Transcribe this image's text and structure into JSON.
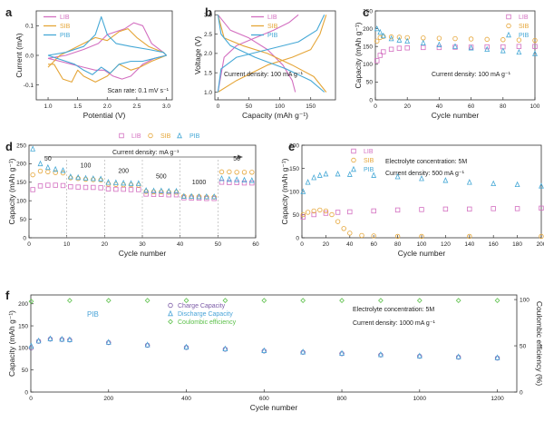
{
  "figure": {
    "type": "multi-panel electrochemistry figure",
    "series_colors": {
      "LIB": "#d36fc0",
      "SIB": "#e5a537",
      "PIB": "#45a8d6",
      "charge": "#7b5aa6",
      "discharge": "#4aa4d8",
      "ce": "#5cc04a"
    }
  },
  "chart_data": [
    {
      "panel": "a",
      "type": "line",
      "xlabel": "Potential (V)",
      "ylabel": "Current (mA)",
      "xlim": [
        0.8,
        3.1
      ],
      "ylim": [
        -0.15,
        0.15
      ],
      "xticks": [
        "1.0",
        "1.5",
        "2.0",
        "2.5",
        "3.0"
      ],
      "yticks": [
        "-0.1",
        "0.0",
        "0.1"
      ],
      "annotation": "Scan rate: 0.1 mV s⁻¹",
      "series": [
        {
          "name": "LIB",
          "color": "#d36fc0",
          "x": [
            1.0,
            1.3,
            1.6,
            1.85,
            2.0,
            2.15,
            2.3,
            2.45,
            2.6,
            2.75,
            2.95,
            3.0,
            2.8,
            2.6,
            2.4,
            2.25,
            2.1,
            1.95,
            1.8,
            1.6,
            1.4,
            1.2,
            1.0
          ],
          "y": [
            -0.01,
            0.0,
            0.02,
            0.04,
            0.07,
            0.08,
            0.09,
            0.11,
            0.1,
            0.04,
            0.01,
            0.0,
            -0.01,
            -0.03,
            -0.07,
            -0.08,
            -0.07,
            -0.05,
            -0.05,
            -0.04,
            -0.03,
            -0.02,
            -0.01
          ]
        },
        {
          "name": "SIB",
          "color": "#e5a537",
          "x": [
            1.0,
            1.2,
            1.4,
            1.6,
            1.8,
            2.0,
            2.2,
            2.35,
            2.5,
            2.7,
            2.95,
            3.0,
            2.75,
            2.55,
            2.4,
            2.2,
            2.0,
            1.8,
            1.6,
            1.5,
            1.4,
            1.25,
            1.1,
            1.0
          ],
          "y": [
            -0.04,
            0.0,
            0.02,
            0.04,
            0.06,
            0.05,
            0.08,
            0.09,
            0.06,
            0.03,
            0.01,
            0.0,
            -0.02,
            -0.04,
            -0.05,
            -0.03,
            -0.07,
            -0.09,
            -0.07,
            -0.05,
            -0.09,
            -0.08,
            -0.03,
            -0.03
          ]
        },
        {
          "name": "PIB",
          "color": "#45a8d6",
          "x": [
            1.0,
            1.3,
            1.6,
            1.8,
            1.9,
            2.0,
            2.15,
            2.4,
            2.7,
            2.95,
            3.0,
            2.8,
            2.6,
            2.4,
            2.2,
            2.05,
            1.9,
            1.75,
            1.6,
            1.45,
            1.3,
            1.15,
            1.0
          ],
          "y": [
            0.0,
            0.01,
            0.03,
            0.07,
            0.13,
            0.07,
            0.04,
            0.03,
            0.02,
            0.01,
            0.0,
            -0.01,
            -0.02,
            -0.02,
            -0.03,
            -0.06,
            -0.04,
            -0.065,
            -0.05,
            -0.03,
            -0.02,
            -0.01,
            0.0
          ]
        }
      ]
    },
    {
      "panel": "b",
      "type": "line",
      "xlabel": "Capacity (mAh g⁻¹)",
      "ylabel": "Voltage (V)",
      "xlim": [
        -5,
        190
      ],
      "ylim": [
        0.8,
        3.1
      ],
      "xticks": [
        "0",
        "50",
        "100",
        "150"
      ],
      "yticks": [
        "1.0",
        "1.5",
        "2.0",
        "2.5",
        "3.0"
      ],
      "annotation": "Current density: 100 mA g⁻¹",
      "series": [
        {
          "name": "LIB",
          "color": "#d36fc0",
          "curves": [
            {
              "x": [
                0,
                10,
                30,
                60,
                90,
                115,
                130
              ],
              "y": [
                1.0,
                1.9,
                2.2,
                2.4,
                2.6,
                2.8,
                3.0
              ]
            },
            {
              "x": [
                0,
                20,
                50,
                80,
                105,
                120,
                125
              ],
              "y": [
                3.0,
                2.6,
                2.4,
                2.1,
                1.7,
                1.3,
                1.0
              ]
            }
          ]
        },
        {
          "name": "SIB",
          "color": "#e5a537",
          "curves": [
            {
              "x": [
                0,
                30,
                80,
                120,
                150,
                165,
                175
              ],
              "y": [
                1.0,
                1.3,
                1.7,
                1.9,
                2.1,
                2.5,
                3.0
              ]
            },
            {
              "x": [
                0,
                10,
                40,
                80,
                120,
                155,
                175
              ],
              "y": [
                3.0,
                2.4,
                2.2,
                2.0,
                1.7,
                1.4,
                1.0
              ]
            }
          ]
        },
        {
          "name": "PIB",
          "color": "#45a8d6",
          "curves": [
            {
              "x": [
                0,
                5,
                30,
                80,
                130,
                160,
                172
              ],
              "y": [
                1.0,
                1.6,
                1.9,
                2.1,
                2.3,
                2.6,
                3.0
              ]
            },
            {
              "x": [
                0,
                5,
                20,
                60,
                110,
                150,
                172
              ],
              "y": [
                3.0,
                2.5,
                2.2,
                1.9,
                1.6,
                1.3,
                1.0
              ]
            }
          ]
        }
      ]
    },
    {
      "panel": "c",
      "type": "scatter",
      "xlabel": "Cycle number",
      "ylabel": "Capacity (mAh g⁻¹)",
      "xlim": [
        0,
        100
      ],
      "ylim": [
        0,
        250
      ],
      "xticks": [
        "0",
        "20",
        "40",
        "60",
        "80",
        "100"
      ],
      "yticks": [
        "0",
        "50",
        "100",
        "150",
        "200",
        "250"
      ],
      "annotation": "Current density: 100 mA g⁻¹",
      "series": [
        {
          "name": "LIB",
          "color": "#d36fc0",
          "x": [
            1,
            3,
            5,
            10,
            15,
            20,
            30,
            40,
            50,
            60,
            70,
            80,
            90,
            100
          ],
          "y": [
            110,
            125,
            135,
            142,
            145,
            146,
            147,
            147,
            148,
            148,
            149,
            149,
            150,
            150
          ]
        },
        {
          "name": "SIB",
          "color": "#e5a537",
          "x": [
            1,
            3,
            5,
            10,
            15,
            20,
            30,
            40,
            50,
            60,
            70,
            80,
            90,
            100
          ],
          "y": [
            165,
            175,
            178,
            177,
            176,
            175,
            174,
            173,
            172,
            171,
            170,
            169,
            168,
            167
          ]
        },
        {
          "name": "PIB",
          "color": "#45a8d6",
          "x": [
            1,
            3,
            5,
            10,
            15,
            20,
            30,
            40,
            50,
            60,
            70,
            80,
            90,
            100
          ],
          "y": [
            200,
            190,
            180,
            172,
            168,
            165,
            160,
            155,
            150,
            146,
            142,
            138,
            134,
            130
          ]
        }
      ]
    },
    {
      "panel": "d",
      "type": "scatter",
      "xlabel": "Cycle number",
      "ylabel": "Capacity (mAh g⁻¹)",
      "xlim": [
        0,
        60
      ],
      "ylim": [
        0,
        250
      ],
      "xticks": [
        "0",
        "10",
        "20",
        "30",
        "40",
        "50",
        "60"
      ],
      "yticks": [
        "0",
        "50",
        "100",
        "150",
        "200",
        "250"
      ],
      "annotation": "Current density: mA g⁻¹",
      "rate_labels": [
        "50",
        "100",
        "200",
        "500",
        "1000",
        "50"
      ],
      "series": [
        {
          "name": "LIB",
          "color": "#d36fc0",
          "x": [
            1,
            3,
            5,
            7,
            9,
            11,
            13,
            15,
            17,
            19,
            21,
            23,
            25,
            27,
            29,
            31,
            33,
            35,
            37,
            39,
            41,
            43,
            45,
            47,
            49,
            51,
            53,
            55,
            57,
            59
          ],
          "y": [
            130,
            140,
            142,
            142,
            141,
            138,
            137,
            136,
            136,
            135,
            132,
            131,
            131,
            130,
            130,
            118,
            117,
            117,
            116,
            116,
            108,
            107,
            107,
            106,
            106,
            150,
            149,
            149,
            148,
            148
          ]
        },
        {
          "name": "SIB",
          "color": "#e5a537",
          "x": [
            1,
            3,
            5,
            7,
            9,
            11,
            13,
            15,
            17,
            19,
            21,
            23,
            25,
            27,
            29,
            31,
            33,
            35,
            37,
            39,
            41,
            43,
            45,
            47,
            49,
            51,
            53,
            55,
            57,
            59
          ],
          "y": [
            170,
            180,
            178,
            176,
            175,
            162,
            160,
            158,
            157,
            156,
            145,
            144,
            143,
            143,
            142,
            125,
            124,
            124,
            123,
            123,
            112,
            111,
            111,
            110,
            110,
            178,
            178,
            177,
            177,
            177
          ]
        },
        {
          "name": "PIB",
          "color": "#45a8d6",
          "x": [
            1,
            3,
            5,
            7,
            9,
            11,
            13,
            15,
            17,
            19,
            21,
            23,
            25,
            27,
            29,
            31,
            33,
            35,
            37,
            39,
            41,
            43,
            45,
            47,
            49,
            51,
            53,
            55,
            57,
            59
          ],
          "y": [
            240,
            200,
            190,
            185,
            182,
            165,
            163,
            161,
            160,
            159,
            150,
            149,
            148,
            147,
            147,
            128,
            127,
            127,
            126,
            126,
            112,
            112,
            111,
            111,
            111,
            160,
            158,
            157,
            156,
            155
          ]
        }
      ]
    },
    {
      "panel": "e",
      "type": "scatter",
      "xlabel": "Cycle number",
      "ylabel": "Capacity (mAh g⁻¹)",
      "xlim": [
        0,
        200
      ],
      "ylim": [
        0,
        200
      ],
      "xticks": [
        "0",
        "20",
        "40",
        "60",
        "80",
        "100",
        "120",
        "140",
        "160",
        "180",
        "200"
      ],
      "yticks": [
        "0",
        "50",
        "100",
        "150",
        "200"
      ],
      "annotations": [
        "Electrolyte concentration: 5M",
        "Current density: 500 mA g⁻¹"
      ],
      "series": [
        {
          "name": "LIB",
          "color": "#d36fc0",
          "x": [
            1,
            10,
            20,
            30,
            40,
            60,
            80,
            100,
            120,
            140,
            160,
            180,
            200
          ],
          "y": [
            45,
            50,
            53,
            55,
            56,
            58,
            60,
            61,
            62,
            62,
            63,
            63,
            64
          ]
        },
        {
          "name": "SIB",
          "color": "#e5a537",
          "x": [
            1,
            5,
            10,
            15,
            20,
            25,
            30,
            35,
            40,
            50,
            60,
            80,
            100,
            140,
            200
          ],
          "y": [
            50,
            55,
            58,
            60,
            58,
            50,
            35,
            20,
            10,
            5,
            4,
            3,
            3,
            3,
            3
          ]
        },
        {
          "name": "PIB",
          "color": "#45a8d6",
          "x": [
            1,
            5,
            10,
            15,
            20,
            30,
            40,
            60,
            80,
            100,
            120,
            140,
            160,
            180,
            200
          ],
          "y": [
            100,
            120,
            130,
            135,
            138,
            138,
            137,
            135,
            132,
            128,
            124,
            120,
            117,
            115,
            112
          ]
        }
      ]
    },
    {
      "panel": "f",
      "type": "scatter",
      "xlabel": "Cycle number",
      "ylabel": "Capacity (mAh g⁻¹)",
      "ylabel2": "Coulombic efficiency (%)",
      "xlim": [
        0,
        1250
      ],
      "ylim": [
        0,
        220
      ],
      "y2lim": [
        0,
        105
      ],
      "xticks": [
        "0",
        "200",
        "400",
        "600",
        "800",
        "1000",
        "1200"
      ],
      "yticks": [
        "0",
        "50",
        "100",
        "150",
        "200"
      ],
      "y2ticks": [
        "0",
        "50",
        "100"
      ],
      "series_label": "PIB",
      "annotations": [
        "Electrolyte concentration: 5M",
        "Current density: 1000 mA g⁻¹"
      ],
      "series": [
        {
          "name": "Charge Capacity",
          "color": "#7b5aa6",
          "axis": "left",
          "x": [
            1,
            20,
            50,
            80,
            100,
            200,
            300,
            400,
            500,
            600,
            700,
            800,
            900,
            1000,
            1100,
            1200
          ],
          "y": [
            100,
            115,
            120,
            119,
            118,
            112,
            106,
            101,
            97,
            93,
            90,
            87,
            84,
            81,
            79,
            77
          ]
        },
        {
          "name": "Discharge Capacity",
          "color": "#4aa4d8",
          "axis": "left",
          "x": [
            1,
            20,
            50,
            80,
            100,
            200,
            300,
            400,
            500,
            600,
            700,
            800,
            900,
            1000,
            1100,
            1200
          ],
          "y": [
            105,
            116,
            121,
            120,
            119,
            113,
            107,
            102,
            98,
            94,
            91,
            88,
            85,
            82,
            80,
            78
          ]
        },
        {
          "name": "Coulombic efficiency",
          "color": "#5cc04a",
          "axis": "right",
          "x": [
            1,
            100,
            200,
            300,
            400,
            500,
            600,
            700,
            800,
            900,
            1000,
            1100,
            1200
          ],
          "y": [
            98,
            99,
            99,
            99,
            99,
            99,
            99,
            99,
            99,
            99,
            99,
            99,
            99
          ]
        }
      ]
    }
  ]
}
